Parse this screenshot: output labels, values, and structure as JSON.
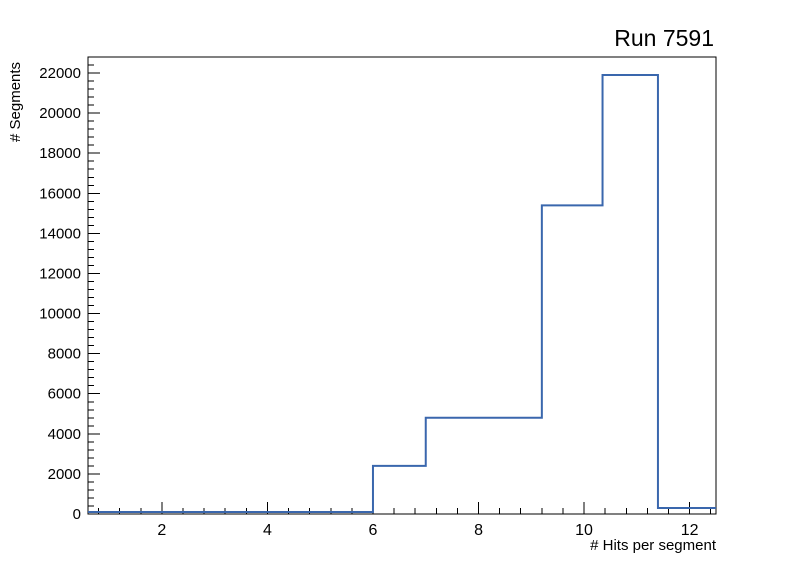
{
  "chart_data": {
    "type": "histogram",
    "title": "Run 7591",
    "xlabel": "# Hits per segment",
    "ylabel": "# Segments",
    "xlim": [
      0.6,
      12.5
    ],
    "ylim": [
      0,
      22800
    ],
    "x_major_ticks": [
      2,
      4,
      6,
      8,
      10,
      12
    ],
    "x_minor_step": 0.4,
    "y_major_ticks": [
      0,
      2000,
      4000,
      6000,
      8000,
      10000,
      12000,
      14000,
      16000,
      18000,
      20000,
      22000
    ],
    "y_minor_step": 400,
    "grid": false,
    "line_color": "#3a67ad",
    "frame_color": "#000000",
    "background_color": "#ffffff",
    "bins": [
      {
        "x_low": 0.6,
        "x_high": 6.0,
        "count": 100
      },
      {
        "x_low": 6.0,
        "x_high": 7.0,
        "count": 2400
      },
      {
        "x_low": 7.0,
        "x_high": 9.2,
        "count": 4800
      },
      {
        "x_low": 9.2,
        "x_high": 10.35,
        "count": 15400
      },
      {
        "x_low": 10.35,
        "x_high": 11.4,
        "count": 21900
      },
      {
        "x_low": 11.4,
        "x_high": 12.5,
        "count": 300
      }
    ]
  }
}
